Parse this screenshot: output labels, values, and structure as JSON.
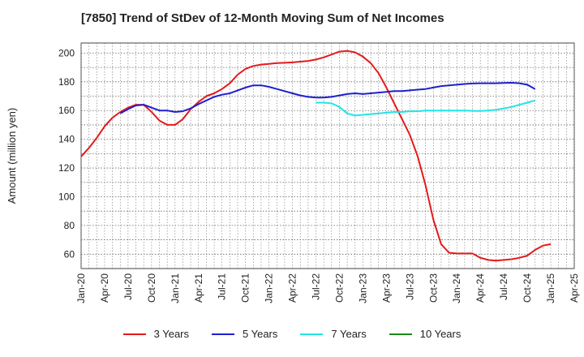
{
  "chart_data": {
    "type": "line",
    "title": "[7850]  Trend of StDev of 12-Month Moving Sum of Net Incomes",
    "ylabel": "Amount (million yen)",
    "xlabel": "",
    "ylim": [
      50,
      207
    ],
    "yticks": [
      60,
      80,
      100,
      120,
      140,
      160,
      180,
      200
    ],
    "x_tick_labels": [
      "Jan-20",
      "Apr-20",
      "Jul-20",
      "Oct-20",
      "Jan-21",
      "Apr-21",
      "Jul-21",
      "Oct-21",
      "Jan-22",
      "Apr-22",
      "Jul-22",
      "Oct-22",
      "Jan-23",
      "Apr-23",
      "Jul-23",
      "Oct-23",
      "Jan-24",
      "Apr-24",
      "Jul-24",
      "Oct-24",
      "Jan-25",
      "Apr-25"
    ],
    "grid": true,
    "legend_position": "bottom",
    "series": [
      {
        "name": "3 Years",
        "color": "#e31a1c",
        "start_month": "Jan-20",
        "values": [
          128,
          134,
          141,
          149,
          155,
          159,
          162,
          164,
          164,
          159,
          153,
          150,
          150,
          154,
          161,
          166,
          170,
          172,
          175,
          179,
          185,
          189,
          191,
          192,
          192.5,
          193,
          193.2,
          193.5,
          194,
          194.5,
          195.5,
          197,
          199,
          201,
          201.5,
          200.5,
          197.5,
          193,
          186,
          176,
          165,
          154,
          143,
          128,
          108,
          84,
          67,
          61,
          60.5,
          60.5,
          60.5,
          57.5,
          56,
          55.5,
          56,
          56.5,
          57.5,
          59,
          63,
          66,
          67
        ]
      },
      {
        "name": "5 Years",
        "color": "#1f1fcf",
        "start_month": "Jun-20",
        "values": [
          158,
          161,
          163.5,
          164,
          162,
          160,
          160,
          159,
          159.5,
          161.5,
          164.5,
          167,
          169.5,
          171,
          172,
          174,
          176,
          177.5,
          177.5,
          176.5,
          175,
          173.5,
          172,
          170.5,
          169.5,
          169,
          169,
          169.5,
          170.5,
          171.5,
          172,
          171.5,
          172,
          172.5,
          173,
          173.5,
          173.5,
          174,
          174.5,
          175,
          176,
          177,
          177.5,
          178,
          178.5,
          178.8,
          179,
          179,
          179,
          179.2,
          179.3,
          179,
          178,
          175
        ]
      },
      {
        "name": "7 Years",
        "color": "#22e5e5",
        "start_month": "Jul-22",
        "values": [
          165.5,
          165.5,
          165,
          162.5,
          158,
          156.5,
          157,
          157.5,
          158,
          158.5,
          159,
          159,
          159.5,
          159.5,
          160,
          160,
          160,
          160,
          160,
          160,
          159.8,
          159.7,
          160,
          160.5,
          161.5,
          162.5,
          164,
          165.5,
          167
        ]
      },
      {
        "name": "10 Years",
        "color": "#1a8a1a",
        "start_month": "",
        "values": []
      }
    ]
  }
}
